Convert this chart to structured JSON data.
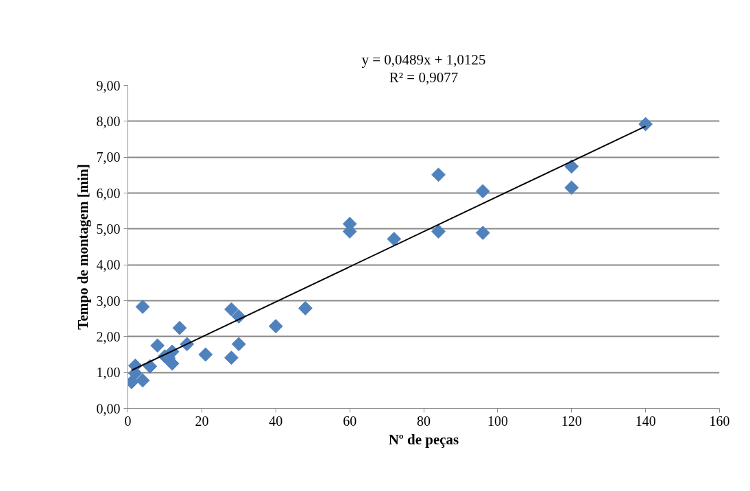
{
  "chart_data": {
    "type": "scatter",
    "xlabel": "Nº de peças",
    "ylabel": "Tempo de montagem [min]",
    "annotations": [
      "y = 0,0489x + 1,0125",
      "R² = 0,9077"
    ],
    "marker": "diamond",
    "grid": "y",
    "xlim": [
      0,
      160
    ],
    "xticks": [
      0,
      20,
      40,
      60,
      80,
      100,
      120,
      140,
      160
    ],
    "ylim": [
      0,
      9
    ],
    "yticks": [
      {
        "value": 0,
        "label": "0,00"
      },
      {
        "value": 1,
        "label": "1,00"
      },
      {
        "value": 2,
        "label": "2,00"
      },
      {
        "value": 3,
        "label": "3,00"
      },
      {
        "value": 4,
        "label": "4,00"
      },
      {
        "value": 5,
        "label": "5,00"
      },
      {
        "value": 6,
        "label": "6,00"
      },
      {
        "value": 7,
        "label": "7,00"
      },
      {
        "value": 8,
        "label": "8,00"
      },
      {
        "value": 9,
        "label": "9,00"
      }
    ],
    "series": [
      {
        "color": "#4f81bd",
        "x": [
          1,
          2,
          2,
          4,
          4,
          6,
          8,
          10,
          11,
          12,
          12,
          14,
          16,
          21,
          28,
          28,
          30,
          30,
          40,
          48,
          60,
          60,
          72,
          84,
          84,
          96,
          96,
          120,
          120,
          140
        ],
        "values": [
          0.73,
          1.19,
          0.98,
          0.78,
          2.83,
          1.17,
          1.75,
          1.45,
          1.4,
          1.58,
          1.25,
          2.24,
          1.79,
          1.5,
          2.76,
          1.41,
          2.56,
          1.79,
          2.29,
          2.79,
          5.14,
          4.93,
          4.72,
          4.93,
          6.51,
          6.05,
          4.89,
          6.74,
          6.15,
          7.92
        ]
      },
      {
        "type": "line",
        "marker": "none",
        "color": "#000000",
        "x": [
          1,
          140
        ],
        "values": [
          1.06,
          7.86
        ]
      }
    ]
  }
}
